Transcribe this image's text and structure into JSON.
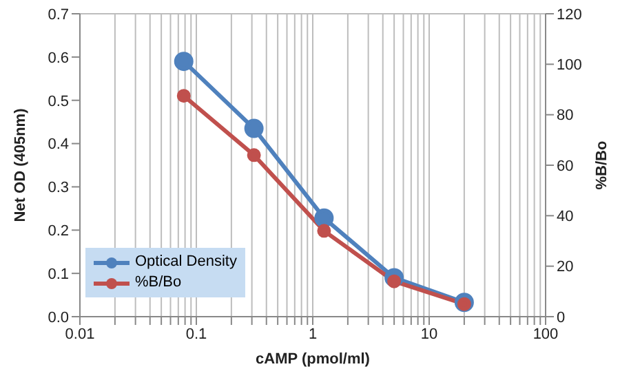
{
  "chart_data": {
    "type": "line",
    "xlabel": "cAMP (pmol/ml)",
    "ylabel": "Net OD (405nm)",
    "y2label": "%B/Bo",
    "x": [
      0.078,
      0.3125,
      1.25,
      5,
      20
    ],
    "series": [
      {
        "name": "Optical Density",
        "color": "#4f81bd",
        "values": [
          0.59,
          0.435,
          0.228,
          0.09,
          0.033
        ]
      },
      {
        "name": "%B/Bo",
        "color": "#c0504d",
        "values": [
          87.5,
          64,
          34,
          14,
          5
        ],
        "axis": "y2"
      }
    ],
    "log": "x",
    "xlim": [
      0.01,
      100
    ],
    "xticks": [
      0.01,
      {
        "value": 0.02,
        "label": null
      },
      {
        "value": 0.03,
        "label": null
      },
      {
        "value": 0.04,
        "label": null
      },
      {
        "value": 0.05,
        "label": null
      },
      {
        "value": 0.06,
        "label": null
      },
      {
        "value": 0.07,
        "label": null
      },
      {
        "value": 0.08,
        "label": null
      },
      {
        "value": 0.09,
        "label": null
      },
      0.1,
      {
        "value": 0.2,
        "label": null
      },
      {
        "value": 0.3,
        "label": null
      },
      {
        "value": 0.4,
        "label": null
      },
      {
        "value": 0.5,
        "label": null
      },
      {
        "value": 0.6,
        "label": null
      },
      {
        "value": 0.7,
        "label": null
      },
      {
        "value": 0.8,
        "label": null
      },
      {
        "value": 0.9,
        "label": null
      },
      1,
      {
        "value": 2,
        "label": null
      },
      {
        "value": 3,
        "label": null
      },
      {
        "value": 4,
        "label": null
      },
      {
        "value": 5,
        "label": null
      },
      {
        "value": 6,
        "label": null
      },
      {
        "value": 7,
        "label": null
      },
      {
        "value": 8,
        "label": null
      },
      {
        "value": 9,
        "label": null
      },
      10,
      {
        "value": 20,
        "label": null
      },
      {
        "value": 30,
        "label": null
      },
      {
        "value": 40,
        "label": null
      },
      {
        "value": 50,
        "label": null
      },
      {
        "value": 60,
        "label": null
      },
      {
        "value": 70,
        "label": null
      },
      {
        "value": 80,
        "label": null
      },
      {
        "value": 90,
        "label": null
      },
      100
    ],
    "ylim": [
      0,
      0.7
    ],
    "yticks": [
      {
        "value": 0,
        "label": "0.0"
      },
      0.1,
      0.2,
      0.3,
      0.4,
      0.5,
      0.6,
      0.7
    ],
    "y2lim": [
      0,
      120
    ],
    "y2ticks": [
      0,
      20,
      40,
      60,
      80,
      100,
      120
    ],
    "grid": true,
    "legend": "bottom left",
    "marker": "circle",
    "line_style": "solid"
  }
}
